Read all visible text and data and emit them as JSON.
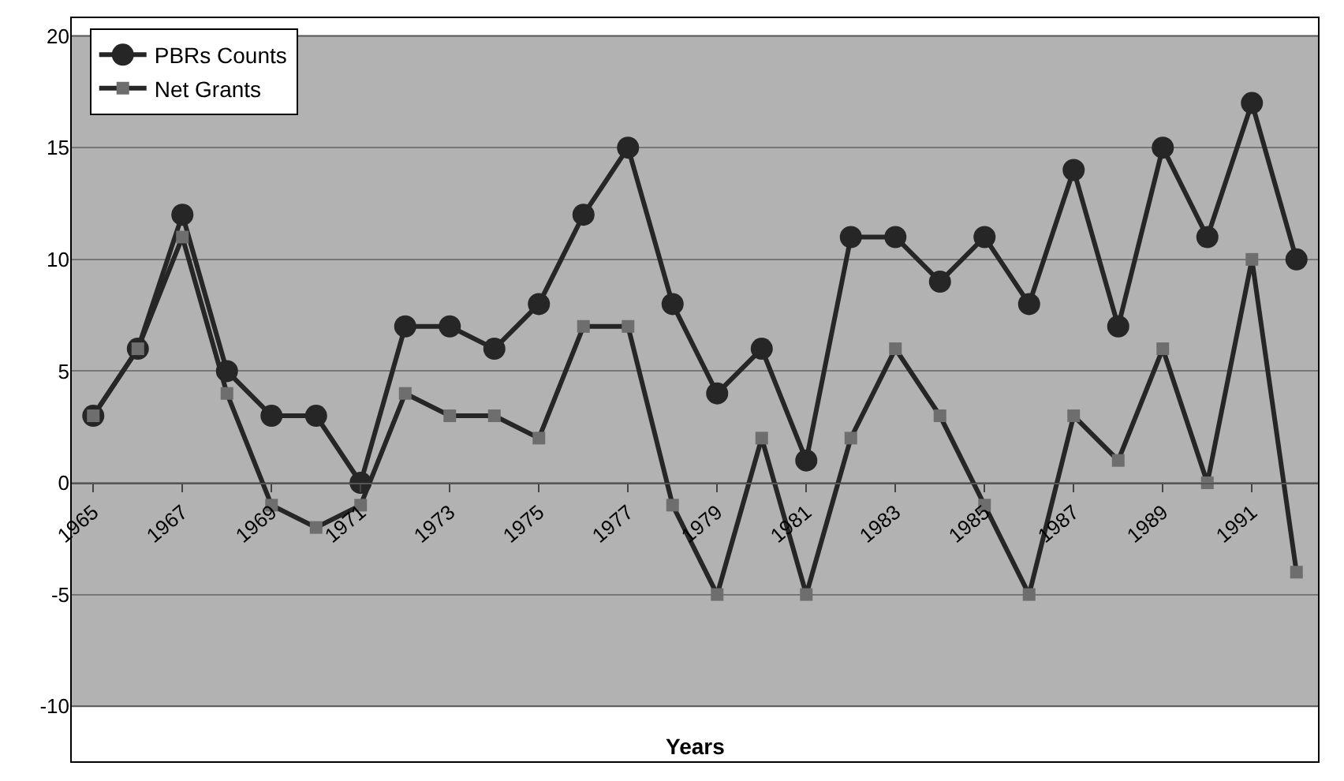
{
  "chart_data": {
    "type": "line",
    "xlabel": "Years",
    "x": [
      1965,
      1966,
      1967,
      1968,
      1969,
      1970,
      1971,
      1972,
      1973,
      1974,
      1975,
      1976,
      1977,
      1978,
      1979,
      1980,
      1981,
      1982,
      1983,
      1984,
      1985,
      1986,
      1987,
      1988,
      1989,
      1990,
      1991,
      1992
    ],
    "series": [
      {
        "name": "PBRs Counts",
        "color": "#262626",
        "marker": "circle",
        "values": [
          3,
          6,
          12,
          5,
          3,
          3,
          0,
          7,
          7,
          6,
          8,
          12,
          15,
          8,
          4,
          6,
          1,
          11,
          11,
          9,
          11,
          8,
          14,
          7,
          15,
          11,
          17,
          10
        ]
      },
      {
        "name": "Net Grants",
        "color": "#6e6e6e",
        "marker": "square",
        "values": [
          3,
          6,
          11,
          4,
          -1,
          -2,
          -1,
          4,
          3,
          3,
          2,
          7,
          7,
          -1,
          -5,
          2,
          -5,
          2,
          6,
          3,
          -1,
          -5,
          3,
          1,
          6,
          0,
          10,
          -4
        ]
      }
    ],
    "xlim": [
      1964.5,
      1992.5
    ],
    "xticks": [
      1965,
      1967,
      1969,
      1971,
      1973,
      1975,
      1977,
      1979,
      1981,
      1983,
      1985,
      1987,
      1989,
      1991
    ],
    "ylim": [
      -10,
      20
    ],
    "yticks": [
      -10,
      -5,
      0,
      5,
      10,
      15,
      20
    ],
    "grid": "y",
    "legend": "top left",
    "line_style": "solid"
  }
}
